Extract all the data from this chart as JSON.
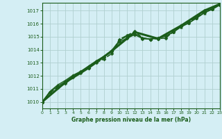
{
  "title": "Graphe pression niveau de la mer (hPa)",
  "bg_color": "#d4eef4",
  "grid_color": "#b0d0d0",
  "line_color": "#1a5c1a",
  "xlim": [
    0,
    23
  ],
  "ylim": [
    1009.5,
    1017.6
  ],
  "yticks": [
    1010,
    1011,
    1012,
    1013,
    1014,
    1015,
    1016,
    1017
  ],
  "xticks": [
    0,
    1,
    2,
    3,
    4,
    5,
    6,
    7,
    8,
    9,
    10,
    11,
    12,
    13,
    14,
    15,
    16,
    17,
    18,
    19,
    20,
    21,
    22,
    23
  ],
  "series": [
    {
      "x": [
        0,
        1,
        2,
        3,
        4,
        5,
        6,
        7,
        8,
        9,
        10,
        11,
        12,
        13,
        14,
        15,
        16,
        17,
        18,
        19,
        20,
        21,
        22,
        23
      ],
      "y": [
        1010.0,
        1010.7,
        1011.1,
        1011.4,
        1011.9,
        1012.2,
        1012.6,
        1013.0,
        1013.3,
        1013.7,
        1014.8,
        1015.1,
        1015.4,
        1014.9,
        1014.8,
        1014.85,
        1014.9,
        1015.4,
        1015.85,
        1016.15,
        1016.5,
        1016.95,
        1017.1,
        1017.45
      ],
      "marker": "D",
      "markersize": 2.5,
      "linewidth": 1.2,
      "linestyle": "--"
    },
    {
      "x": [
        0,
        1,
        2,
        3,
        4,
        5,
        6,
        7,
        8,
        9,
        10,
        11,
        12,
        13,
        14,
        15,
        16,
        17,
        18,
        19,
        20,
        21,
        22,
        23
      ],
      "y": [
        1010.0,
        1010.75,
        1011.2,
        1011.55,
        1012.0,
        1012.3,
        1012.7,
        1013.1,
        1013.45,
        1013.85,
        1014.6,
        1014.9,
        1015.15,
        1014.85,
        1014.8,
        1014.9,
        1015.05,
        1015.35,
        1015.8,
        1016.05,
        1016.45,
        1016.85,
        1017.1,
        1017.45
      ],
      "marker": "D",
      "markersize": 2.5,
      "linewidth": 1.0,
      "linestyle": "-"
    },
    {
      "x": [
        0,
        1,
        2,
        3,
        4,
        5,
        6,
        7,
        8,
        9,
        10,
        11,
        12,
        13,
        14,
        15,
        16,
        17,
        18,
        19,
        20,
        21,
        22,
        23
      ],
      "y": [
        1010.0,
        1010.8,
        1011.3,
        1011.65,
        1012.05,
        1012.35,
        1012.75,
        1013.15,
        1013.5,
        1013.95,
        1014.7,
        1015.05,
        1015.25,
        1014.9,
        1014.82,
        1014.92,
        1015.05,
        1015.35,
        1015.75,
        1016.05,
        1016.42,
        1016.82,
        1017.1,
        1017.42
      ],
      "marker": "^",
      "markersize": 2.5,
      "linewidth": 1.0,
      "linestyle": "-"
    },
    {
      "x": [
        0,
        3,
        6,
        9,
        12,
        15,
        18,
        21,
        23
      ],
      "y": [
        1010.0,
        1011.5,
        1012.6,
        1013.9,
        1015.35,
        1014.85,
        1015.85,
        1017.0,
        1017.5
      ],
      "marker": "D",
      "markersize": 2.5,
      "linewidth": 2.2,
      "linestyle": "-"
    }
  ]
}
